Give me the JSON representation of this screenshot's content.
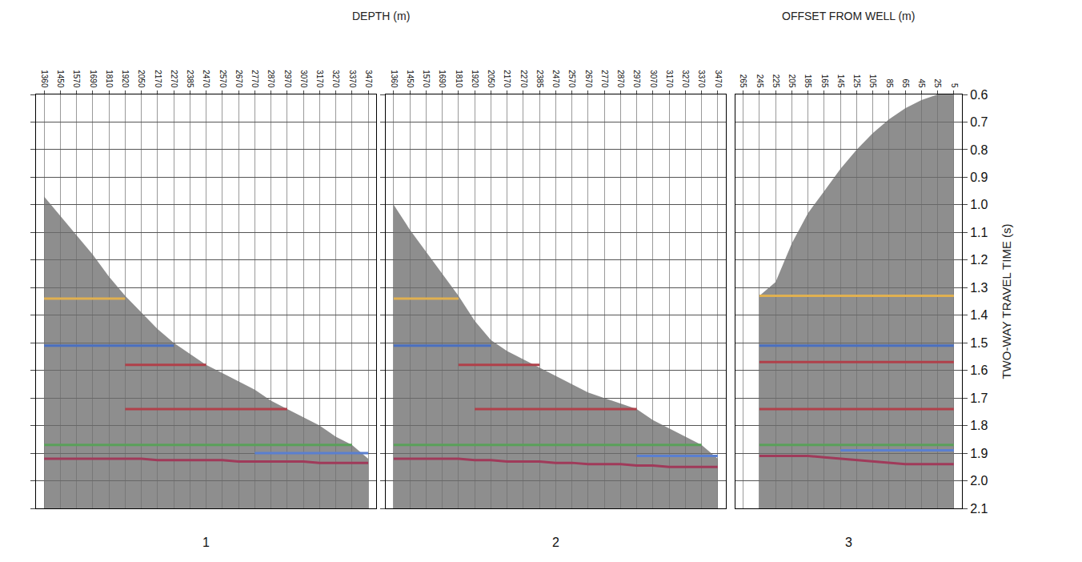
{
  "chart_data": [
    {
      "type": "line",
      "title": "1",
      "xlabel": "DEPTH (m)",
      "grid": true,
      "tick_labels": "x",
      "categories": [
        "1360",
        "1450",
        "1570",
        "1690",
        "1810",
        "1920",
        "2050",
        "2170",
        "2270",
        "2385",
        "2470",
        "2570",
        "2670",
        "2770",
        "2870",
        "2970",
        "3070",
        "3170",
        "3270",
        "3370",
        "3470"
      ],
      "ylim": [
        0.6,
        2.1
      ],
      "yticks": [
        0.6,
        0.7,
        0.8,
        0.9,
        {
          "value": 1,
          "label": "1.0"
        },
        1.1,
        1.2,
        1.3,
        1.4,
        1.5,
        1.6,
        1.7,
        1.8,
        1.9,
        {
          "value": 2,
          "label": "2.0"
        },
        2.1
      ],
      "series": [
        {
          "type": "area",
          "color": "#6e6e6e",
          "values": [
            0.97,
            1.04,
            1.11,
            1.18,
            1.26,
            1.33,
            1.39,
            1.45,
            1.5,
            1.54,
            1.58,
            1.61,
            1.64,
            1.67,
            1.71,
            1.74,
            1.77,
            1.8,
            1.84,
            1.87,
            1.92
          ]
        },
        {
          "color": "#e0b050",
          "values": [
            1.34,
            1.34,
            1.34,
            1.34,
            1.34,
            1.34,
            null,
            null,
            null,
            null,
            null,
            null,
            null,
            null,
            null,
            null,
            null,
            null,
            null,
            null,
            null
          ]
        },
        {
          "color": "#4a6fc0",
          "values": [
            1.51,
            1.51,
            1.51,
            1.51,
            1.51,
            1.51,
            1.51,
            1.51,
            1.51,
            null,
            null,
            null,
            null,
            null,
            null,
            null,
            null,
            null,
            null,
            null,
            null
          ]
        },
        {
          "color": "#b0404a",
          "values": [
            null,
            null,
            null,
            null,
            null,
            1.58,
            1.58,
            1.58,
            1.58,
            1.58,
            1.58,
            null,
            null,
            null,
            null,
            null,
            null,
            null,
            null,
            null,
            null
          ]
        },
        {
          "color": "#b0404a",
          "values": [
            null,
            null,
            null,
            null,
            null,
            1.74,
            1.74,
            1.74,
            1.74,
            1.74,
            1.74,
            1.74,
            1.74,
            1.74,
            1.74,
            1.74,
            null,
            null,
            null,
            null,
            null
          ]
        },
        {
          "color": "#5aa05a",
          "values": [
            1.87,
            1.87,
            1.87,
            1.87,
            1.87,
            1.87,
            1.87,
            1.87,
            1.87,
            1.87,
            1.87,
            1.87,
            1.87,
            1.87,
            1.87,
            1.87,
            1.87,
            1.87,
            1.87,
            1.87,
            null
          ]
        },
        {
          "color": "#5a7fd0",
          "values": [
            null,
            null,
            null,
            null,
            null,
            null,
            null,
            null,
            null,
            null,
            null,
            null,
            null,
            1.9,
            1.9,
            1.9,
            1.9,
            1.9,
            1.9,
            1.9,
            1.9
          ]
        },
        {
          "color": "#a03a5a",
          "values": [
            1.92,
            1.92,
            1.92,
            1.92,
            1.92,
            1.92,
            1.92,
            1.925,
            1.925,
            1.925,
            1.925,
            1.925,
            1.93,
            1.93,
            1.93,
            1.93,
            1.93,
            1.935,
            1.935,
            1.935,
            1.935
          ]
        }
      ]
    },
    {
      "type": "line",
      "title": "2",
      "grid": true,
      "tick_labels": "x",
      "categories": [
        "1360",
        "1450",
        "1570",
        "1690",
        "1810",
        "1920",
        "2050",
        "2170",
        "2270",
        "2385",
        "2470",
        "2570",
        "2670",
        "2770",
        "2870",
        "2970",
        "3070",
        "3170",
        "3270",
        "3370",
        "3470"
      ],
      "ylim": [
        0.6,
        2.1
      ],
      "yticks": [
        0.6,
        0.7,
        0.8,
        0.9,
        {
          "value": 1,
          "label": "1.0"
        },
        1.1,
        1.2,
        1.3,
        1.4,
        1.5,
        1.6,
        1.7,
        1.8,
        1.9,
        {
          "value": 2,
          "label": "2.0"
        },
        2.1
      ],
      "series": [
        {
          "type": "area",
          "color": "#6e6e6e",
          "values": [
            1.0,
            1.09,
            1.17,
            1.25,
            1.33,
            1.42,
            1.49,
            1.53,
            1.56,
            1.59,
            1.62,
            1.65,
            1.68,
            1.7,
            1.72,
            1.74,
            1.78,
            1.81,
            1.84,
            1.87,
            1.92
          ]
        },
        {
          "color": "#e0b050",
          "values": [
            1.34,
            1.34,
            1.34,
            1.34,
            1.34,
            null,
            null,
            null,
            null,
            null,
            null,
            null,
            null,
            null,
            null,
            null,
            null,
            null,
            null,
            null,
            null
          ]
        },
        {
          "color": "#4a6fc0",
          "values": [
            1.51,
            1.51,
            1.51,
            1.51,
            1.51,
            1.51,
            1.51,
            null,
            null,
            null,
            null,
            null,
            null,
            null,
            null,
            null,
            null,
            null,
            null,
            null,
            null
          ]
        },
        {
          "color": "#b0404a",
          "values": [
            null,
            null,
            null,
            null,
            1.58,
            1.58,
            1.58,
            1.58,
            1.58,
            1.58,
            null,
            null,
            null,
            null,
            null,
            null,
            null,
            null,
            null,
            null,
            null
          ]
        },
        {
          "color": "#b0404a",
          "values": [
            null,
            null,
            null,
            null,
            null,
            1.74,
            1.74,
            1.74,
            1.74,
            1.74,
            1.74,
            1.74,
            1.74,
            1.74,
            1.74,
            1.74,
            null,
            null,
            null,
            null,
            null
          ]
        },
        {
          "color": "#5aa05a",
          "values": [
            1.87,
            1.87,
            1.87,
            1.87,
            1.87,
            1.87,
            1.87,
            1.87,
            1.87,
            1.87,
            1.87,
            1.87,
            1.87,
            1.87,
            1.87,
            1.87,
            1.87,
            1.87,
            1.87,
            1.87,
            null
          ]
        },
        {
          "color": "#5a7fd0",
          "values": [
            null,
            null,
            null,
            null,
            null,
            null,
            null,
            null,
            null,
            null,
            null,
            null,
            null,
            null,
            null,
            1.91,
            1.91,
            1.91,
            1.91,
            1.91,
            1.91
          ]
        },
        {
          "color": "#a03a5a",
          "values": [
            1.92,
            1.92,
            1.92,
            1.92,
            1.92,
            1.925,
            1.925,
            1.93,
            1.93,
            1.93,
            1.935,
            1.935,
            1.94,
            1.94,
            1.94,
            1.945,
            1.945,
            1.95,
            1.95,
            1.95,
            1.95
          ]
        }
      ]
    },
    {
      "type": "line",
      "title": "3",
      "xlabel": "OFFSET FROM WELL (m)",
      "ylabel": "TWO-WAY TRAVEL TIME (s)",
      "grid": true,
      "tick_labels": true,
      "categories": [
        "265",
        "245",
        "225",
        "205",
        "185",
        "165",
        "145",
        "125",
        "105",
        "85",
        "65",
        "45",
        "25",
        "5"
      ],
      "ylim": [
        0.6,
        2.1
      ],
      "yticks": [
        0.6,
        0.7,
        0.8,
        0.9,
        {
          "value": 1,
          "label": "1.0"
        },
        1.1,
        1.2,
        1.3,
        1.4,
        1.5,
        1.6,
        1.7,
        1.8,
        1.9,
        {
          "value": 2,
          "label": "2.0"
        },
        2.1
      ],
      "series": [
        {
          "type": "area",
          "color": "#6e6e6e",
          "values": [
            null,
            1.33,
            1.28,
            1.14,
            1.03,
            0.95,
            0.87,
            0.8,
            0.74,
            0.69,
            0.65,
            0.62,
            0.6,
            0.6
          ]
        },
        {
          "color": "#e0b050",
          "values": [
            null,
            1.33,
            1.33,
            1.33,
            1.33,
            1.33,
            1.33,
            1.33,
            1.33,
            1.33,
            1.33,
            1.33,
            1.33,
            1.33
          ]
        },
        {
          "color": "#4a6fc0",
          "values": [
            null,
            1.51,
            1.51,
            1.51,
            1.51,
            1.51,
            1.51,
            1.51,
            1.51,
            1.51,
            1.51,
            1.51,
            1.51,
            1.51
          ]
        },
        {
          "color": "#b0404a",
          "values": [
            null,
            1.57,
            1.57,
            1.57,
            1.57,
            1.57,
            1.57,
            1.57,
            1.57,
            1.57,
            1.57,
            1.57,
            1.57,
            1.57
          ]
        },
        {
          "color": "#b0404a",
          "values": [
            null,
            1.74,
            1.74,
            1.74,
            1.74,
            1.74,
            1.74,
            1.74,
            1.74,
            1.74,
            1.74,
            1.74,
            1.74,
            1.74
          ]
        },
        {
          "color": "#5aa05a",
          "values": [
            null,
            1.87,
            1.87,
            1.87,
            1.87,
            1.87,
            1.87,
            1.87,
            1.87,
            1.87,
            1.87,
            1.87,
            1.87,
            1.87
          ]
        },
        {
          "color": "#5a7fd0",
          "values": [
            null,
            null,
            null,
            null,
            null,
            null,
            1.89,
            1.89,
            1.89,
            1.89,
            1.89,
            1.89,
            1.89,
            1.89
          ]
        },
        {
          "color": "#a03a5a",
          "values": [
            null,
            1.91,
            1.91,
            1.91,
            1.91,
            1.915,
            1.92,
            1.925,
            1.93,
            1.935,
            1.94,
            1.94,
            1.94,
            1.94
          ]
        }
      ]
    }
  ]
}
